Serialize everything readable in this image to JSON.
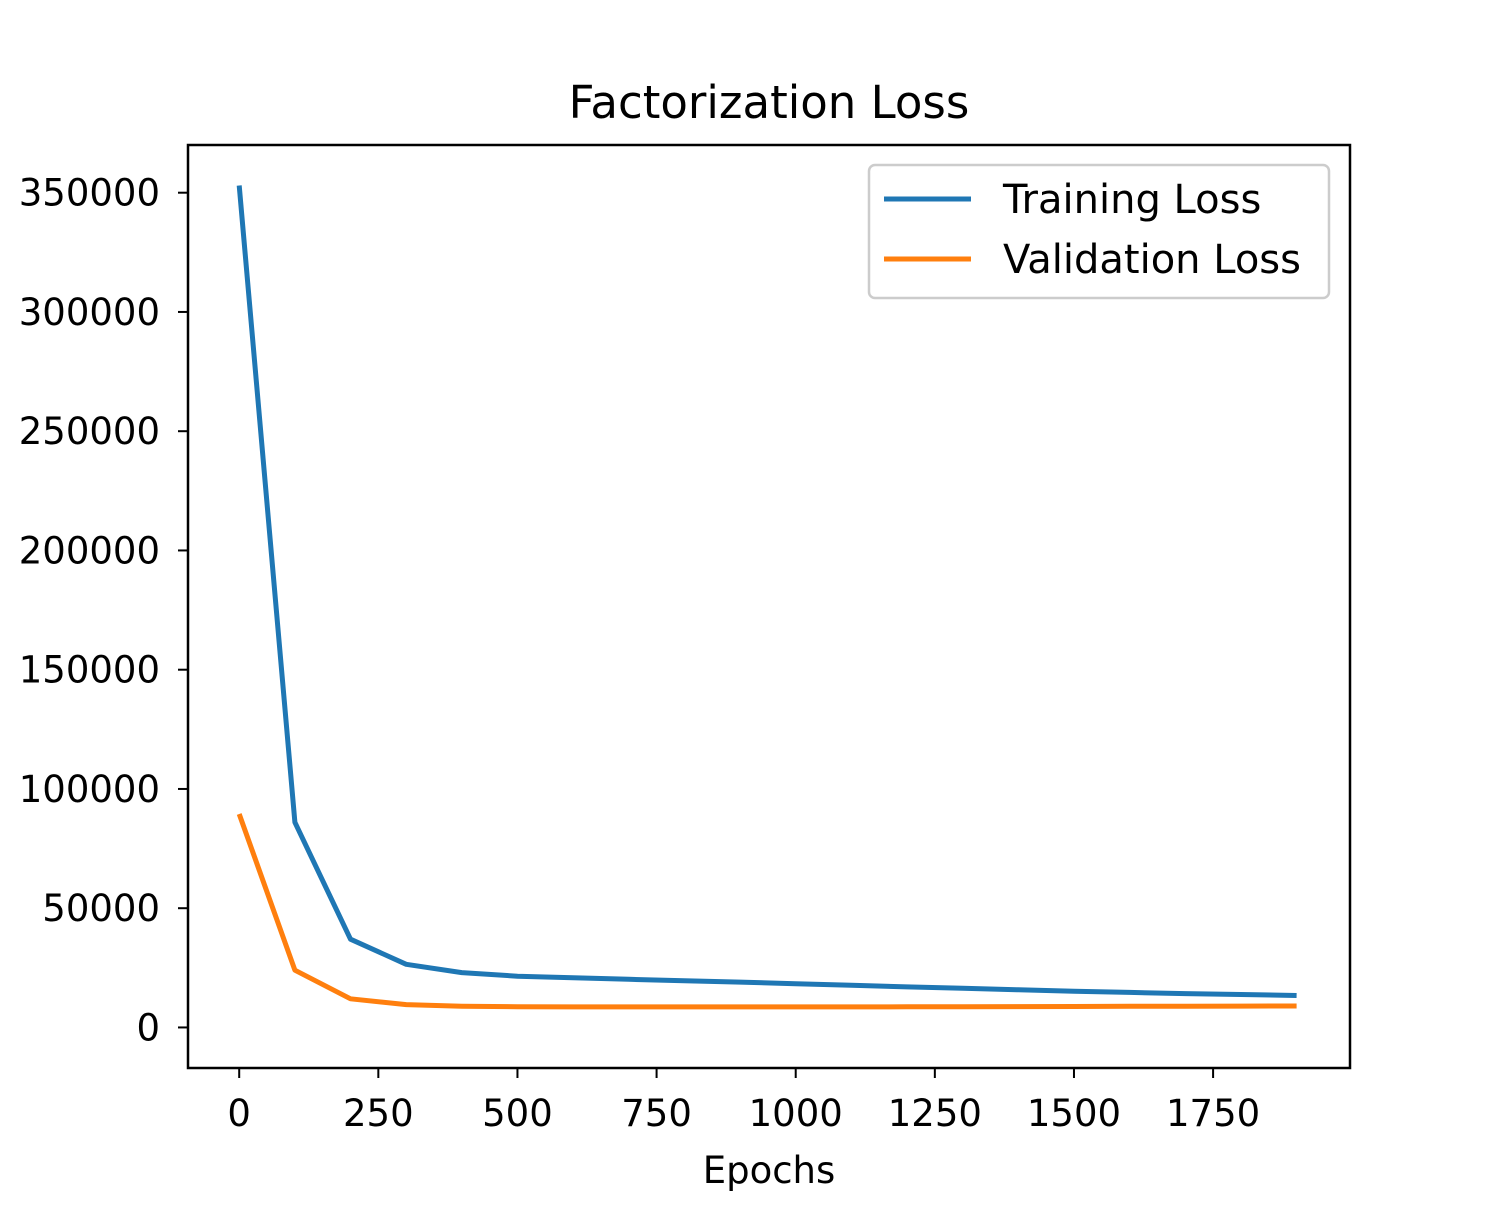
{
  "chart_data": {
    "type": "line",
    "title": "Factorization Loss",
    "xlabel": "Epochs",
    "ylabel": "",
    "xlim": [
      -92,
      1996
    ],
    "ylim": [
      -17000,
      370000
    ],
    "xticks": [
      0,
      250,
      500,
      750,
      1000,
      1250,
      1500,
      1750
    ],
    "xtick_labels": [
      "0",
      "250",
      "500",
      "750",
      "1000",
      "1250",
      "1500",
      "1750"
    ],
    "yticks": [
      0,
      50000,
      100000,
      150000,
      200000,
      250000,
      300000,
      350000
    ],
    "ytick_labels": [
      "0",
      "50000",
      "100000",
      "150000",
      "200000",
      "250000",
      "300000",
      "350000"
    ],
    "grid": false,
    "legend_position": "upper right",
    "x": [
      0,
      100,
      200,
      300,
      400,
      500,
      600,
      700,
      800,
      900,
      1000,
      1100,
      1200,
      1300,
      1400,
      1500,
      1600,
      1700,
      1800,
      1900
    ],
    "series": [
      {
        "name": "Training Loss",
        "color": "#1f77b4",
        "values": [
          353000,
          86000,
          37000,
          26500,
          23000,
          21500,
          20800,
          20200,
          19600,
          19000,
          18300,
          17700,
          17000,
          16400,
          15800,
          15200,
          14700,
          14200,
          13800,
          13400
        ]
      },
      {
        "name": "Validation Loss",
        "color": "#ff7f0e",
        "values": [
          89500,
          24000,
          12000,
          9600,
          8900,
          8700,
          8600,
          8600,
          8600,
          8600,
          8600,
          8600,
          8650,
          8700,
          8750,
          8800,
          8850,
          8900,
          8950,
          9000
        ]
      }
    ]
  }
}
